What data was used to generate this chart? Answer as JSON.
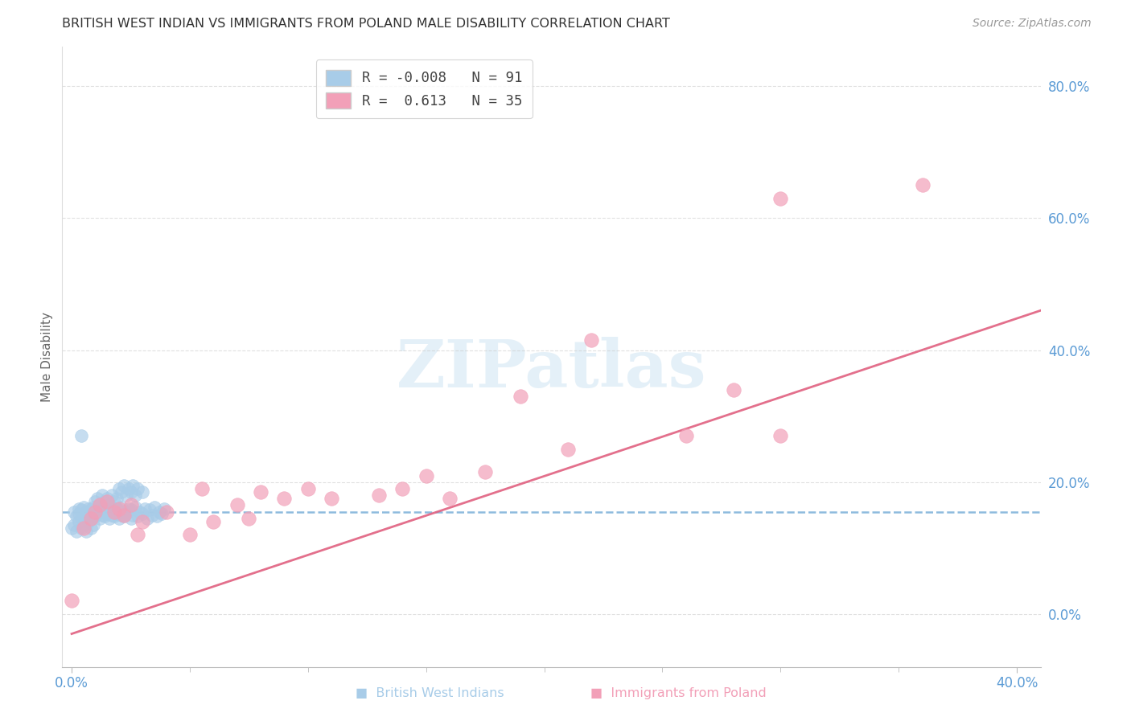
{
  "title": "BRITISH WEST INDIAN VS IMMIGRANTS FROM POLAND MALE DISABILITY CORRELATION CHART",
  "source": "Source: ZipAtlas.com",
  "ylabel_label": "Male Disability",
  "xlim": [
    -0.004,
    0.41
  ],
  "ylim": [
    -0.08,
    0.86
  ],
  "color_bwi": "#a8cce8",
  "color_poland": "#f2a0b8",
  "color_bwi_line": "#7ab0d8",
  "color_poland_line": "#e06080",
  "color_axis_tick": "#5b9bd5",
  "color_grid": "#cccccc",
  "background_color": "#ffffff",
  "bwi_x": [
    0.001,
    0.002,
    0.003,
    0.003,
    0.004,
    0.004,
    0.005,
    0.005,
    0.006,
    0.006,
    0.007,
    0.007,
    0.008,
    0.008,
    0.009,
    0.009,
    0.01,
    0.01,
    0.011,
    0.011,
    0.012,
    0.012,
    0.013,
    0.013,
    0.014,
    0.014,
    0.015,
    0.015,
    0.016,
    0.016,
    0.017,
    0.017,
    0.018,
    0.018,
    0.019,
    0.019,
    0.02,
    0.02,
    0.021,
    0.021,
    0.022,
    0.022,
    0.023,
    0.024,
    0.025,
    0.025,
    0.026,
    0.027,
    0.028,
    0.029,
    0.03,
    0.031,
    0.032,
    0.033,
    0.034,
    0.035,
    0.036,
    0.037,
    0.038,
    0.039,
    0.0,
    0.001,
    0.002,
    0.003,
    0.004,
    0.005,
    0.006,
    0.007,
    0.008,
    0.009,
    0.01,
    0.011,
    0.012,
    0.013,
    0.014,
    0.015,
    0.016,
    0.017,
    0.018,
    0.019,
    0.02,
    0.021,
    0.022,
    0.023,
    0.024,
    0.025,
    0.026,
    0.027,
    0.028,
    0.03,
    0.004
  ],
  "bwi_y": [
    0.155,
    0.148,
    0.152,
    0.16,
    0.145,
    0.158,
    0.15,
    0.162,
    0.148,
    0.155,
    0.152,
    0.16,
    0.145,
    0.158,
    0.15,
    0.162,
    0.148,
    0.155,
    0.152,
    0.16,
    0.145,
    0.158,
    0.15,
    0.162,
    0.148,
    0.155,
    0.152,
    0.16,
    0.145,
    0.158,
    0.15,
    0.162,
    0.148,
    0.155,
    0.152,
    0.16,
    0.145,
    0.158,
    0.15,
    0.162,
    0.148,
    0.155,
    0.152,
    0.16,
    0.145,
    0.158,
    0.15,
    0.162,
    0.148,
    0.155,
    0.152,
    0.16,
    0.145,
    0.158,
    0.15,
    0.162,
    0.148,
    0.155,
    0.152,
    0.16,
    0.13,
    0.135,
    0.125,
    0.14,
    0.13,
    0.135,
    0.125,
    0.14,
    0.13,
    0.135,
    0.17,
    0.175,
    0.165,
    0.18,
    0.17,
    0.175,
    0.165,
    0.18,
    0.17,
    0.175,
    0.19,
    0.185,
    0.195,
    0.18,
    0.19,
    0.185,
    0.195,
    0.18,
    0.19,
    0.185,
    0.27
  ],
  "poland_x": [
    0.0,
    0.005,
    0.008,
    0.01,
    0.012,
    0.015,
    0.018,
    0.02,
    0.022,
    0.025,
    0.028,
    0.03,
    0.04,
    0.05,
    0.055,
    0.06,
    0.07,
    0.075,
    0.08,
    0.09,
    0.1,
    0.11,
    0.13,
    0.14,
    0.15,
    0.16,
    0.175,
    0.19,
    0.21,
    0.22,
    0.26,
    0.28,
    0.3,
    0.36,
    0.3
  ],
  "poland_y": [
    0.02,
    0.13,
    0.145,
    0.155,
    0.165,
    0.17,
    0.155,
    0.16,
    0.15,
    0.165,
    0.12,
    0.14,
    0.155,
    0.12,
    0.19,
    0.14,
    0.165,
    0.145,
    0.185,
    0.175,
    0.19,
    0.175,
    0.18,
    0.19,
    0.21,
    0.175,
    0.215,
    0.33,
    0.25,
    0.415,
    0.27,
    0.34,
    0.27,
    0.65,
    0.63
  ],
  "poland_line_x0": 0.0,
  "poland_line_y0": -0.03,
  "poland_line_x1": 0.41,
  "poland_line_y1": 0.46,
  "bwi_line_y": 0.155,
  "xticks": [
    0.0,
    0.4
  ],
  "yticks": [
    0.0,
    0.2,
    0.4,
    0.6,
    0.8
  ],
  "legend_entries": [
    {
      "label": "R = -0.008   N = 91",
      "color": "#a8cce8"
    },
    {
      "label": "R =  0.613   N = 35",
      "color": "#f2a0b8"
    }
  ],
  "bottom_legend": [
    {
      "label": "British West Indians",
      "color": "#a8cce8"
    },
    {
      "label": "Immigrants from Poland",
      "color": "#f2a0b8"
    }
  ]
}
